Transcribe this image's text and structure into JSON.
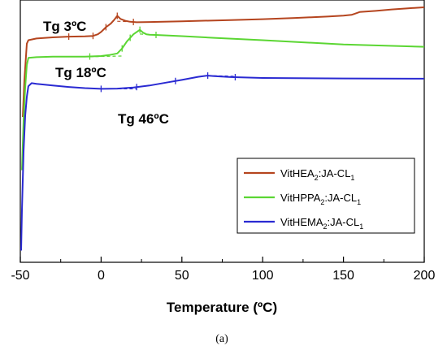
{
  "chart_data": {
    "type": "line",
    "xlabel": "Temperature (ºC)",
    "ylabel": "",
    "xlim": [
      -50,
      200
    ],
    "x_ticks": [
      "-50",
      "0",
      "50",
      "100",
      "150",
      "200"
    ],
    "grid": false,
    "legend_position": "center-right",
    "caption": "(a)",
    "annotations": [
      "Tg 3ºC",
      "Tg 18ºC",
      "Tg 46ºC"
    ],
    "series": [
      {
        "name": "VitHEA2:JA-CL1",
        "legend": {
          "base": "VitHEA",
          "sub1": "2",
          "mid": ":JA-CL",
          "sub2": "1"
        },
        "color": "#b5451f",
        "x": [
          -48.5,
          -47.5,
          -46,
          -45,
          -40,
          -30,
          -20,
          -10,
          -5,
          -2,
          0,
          3,
          6,
          8,
          10,
          12,
          15,
          18,
          22,
          30,
          50,
          80,
          100,
          120,
          140,
          150,
          155,
          157,
          160,
          170,
          180,
          190,
          200
        ],
        "y": [
          -3.05,
          -1.5,
          0.05,
          0.2,
          0.27,
          0.32,
          0.35,
          0.36,
          0.38,
          0.45,
          0.55,
          0.75,
          0.9,
          1.05,
          1.23,
          1.1,
          1.02,
          0.98,
          0.96,
          0.97,
          1.0,
          1.05,
          1.09,
          1.14,
          1.2,
          1.24,
          1.27,
          1.32,
          1.39,
          1.44,
          1.5,
          1.55,
          1.59
        ]
      },
      {
        "name": "VitHPPA2:JA-CL1",
        "legend": {
          "base": "VitHPPA",
          "sub1": "2",
          "mid": ":JA-CL",
          "sub2": "1"
        },
        "color": "#5bd633",
        "x": [
          -49,
          -48,
          -47,
          -46,
          -45,
          -40,
          -30,
          -20,
          -10,
          0,
          5,
          10,
          13,
          16,
          20,
          24,
          26,
          28,
          30,
          35,
          50,
          70,
          100,
          150,
          200
        ],
        "y": [
          -5.3,
          -3.2,
          -1.8,
          -0.85,
          -0.55,
          -0.52,
          -0.5,
          -0.5,
          -0.5,
          -0.47,
          -0.43,
          -0.36,
          -0.15,
          0.15,
          0.45,
          0.64,
          0.52,
          0.45,
          0.43,
          0.42,
          0.37,
          0.3,
          0.2,
          0.02,
          -0.08
        ]
      },
      {
        "name": "VitHEMA2:JA-CL1",
        "legend": {
          "base": "VitHEMA",
          "sub1": "2",
          "mid": ":JA-CL",
          "sub2": "1"
        },
        "color": "#2a2ad2",
        "x": [
          -49.5,
          -49,
          -48,
          -47,
          -46,
          -45,
          -43,
          -40,
          -30,
          -20,
          -10,
          0,
          10,
          20,
          30,
          40,
          50,
          60,
          66,
          70,
          80,
          100,
          150,
          200
        ],
        "y": [
          -8.7,
          -7.0,
          -4.5,
          -3.0,
          -2.2,
          -1.75,
          -1.62,
          -1.65,
          -1.72,
          -1.78,
          -1.83,
          -1.86,
          -1.85,
          -1.8,
          -1.72,
          -1.6,
          -1.48,
          -1.35,
          -1.3,
          -1.32,
          -1.36,
          -1.4,
          -1.42,
          -1.43
        ]
      }
    ],
    "baselines": [
      {
        "series": 0,
        "x": [
          -20,
          -5
        ],
        "y": [
          0.35,
          0.36
        ]
      },
      {
        "series": 0,
        "x": [
          10,
          20
        ],
        "y": [
          1.0,
          0.98
        ]
      },
      {
        "series": 1,
        "x": [
          -7,
          13
        ],
        "y": [
          -0.5,
          -0.47
        ]
      },
      {
        "series": 1,
        "x": [
          24,
          34
        ],
        "y": [
          0.46,
          0.42
        ]
      },
      {
        "series": 2,
        "x": [
          0,
          22
        ],
        "y": [
          -1.86,
          -1.86
        ]
      },
      {
        "series": 2,
        "x": [
          66,
          83
        ],
        "y": [
          -1.3,
          -1.33
        ]
      }
    ],
    "tick_marks": [
      {
        "series": 0,
        "x": [
          -20,
          -5,
          3,
          10,
          20
        ]
      },
      {
        "series": 1,
        "x": [
          -7,
          13,
          18,
          24,
          34
        ]
      },
      {
        "series": 2,
        "x": [
          0,
          22,
          46,
          66,
          83
        ]
      }
    ],
    "y_range": [
      -9.2,
      1.9
    ]
  }
}
